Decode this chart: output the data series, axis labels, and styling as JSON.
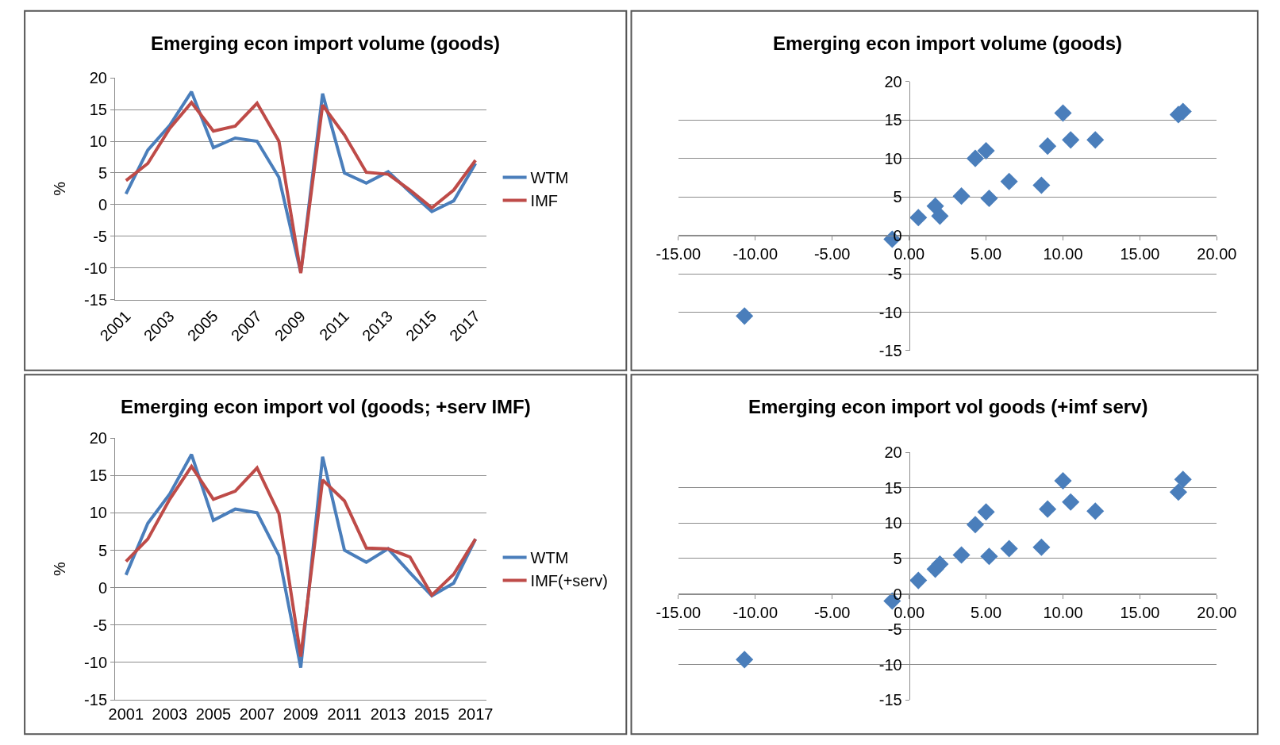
{
  "chart_data": [
    {
      "type": "line",
      "title": "Emerging econ import volume (goods)",
      "ylabel": "%",
      "categories": [
        "2001",
        null,
        "2003",
        null,
        "2005",
        null,
        "2007",
        null,
        "2009",
        null,
        "2011",
        null,
        "2013",
        null,
        "2015",
        null,
        "2017"
      ],
      "series": [
        {
          "name": "WTM",
          "color": "#4a7ebb",
          "values": [
            1.7,
            8.6,
            12.5,
            17.8,
            9.0,
            10.5,
            10.0,
            4.3,
            -10.7,
            17.5,
            5.0,
            3.4,
            5.2,
            2.0,
            -1.1,
            0.6,
            6.5
          ]
        },
        {
          "name": "IMF",
          "color": "#be4b48",
          "values": [
            3.8,
            6.5,
            12.0,
            16.1,
            11.6,
            12.4,
            16.0,
            10.0,
            -10.8,
            15.7,
            11.0,
            5.1,
            4.8,
            2.3,
            -0.5,
            2.3,
            7.0
          ]
        }
      ],
      "ylim": [
        -15,
        20
      ],
      "yticks": [
        -15,
        -10,
        -5,
        0,
        5,
        10,
        15,
        20
      ],
      "grid": "y",
      "legend": "right"
    },
    {
      "type": "scatter",
      "title": "Emerging econ import volume (goods)",
      "x": [
        -10.7,
        -1.1,
        0.6,
        1.7,
        2.0,
        3.4,
        4.3,
        5.0,
        5.2,
        6.5,
        8.6,
        9.0,
        10.0,
        10.5,
        12.1,
        17.5,
        17.8
      ],
      "values": [
        -10.5,
        -0.5,
        2.3,
        3.8,
        2.5,
        5.1,
        10.0,
        11.0,
        4.8,
        7.0,
        6.5,
        11.6,
        15.9,
        12.4,
        12.4,
        15.7,
        16.1
      ],
      "color": "#4a7ebb",
      "marker": "diamond",
      "xlim": [
        -15,
        20
      ],
      "xticks": [
        {
          "value": -15,
          "label": "-15.00"
        },
        {
          "value": -10,
          "label": "-10.00"
        },
        {
          "value": -5,
          "label": "-5.00"
        },
        {
          "value": 0,
          "label": "0.00"
        },
        {
          "value": 5,
          "label": "5.00"
        },
        {
          "value": 10,
          "label": "10.00"
        },
        {
          "value": 15,
          "label": "15.00"
        },
        {
          "value": 20,
          "label": "20.00"
        }
      ],
      "ylim": [
        -15,
        20
      ],
      "yticks": [
        -15,
        -10,
        -5,
        0,
        5,
        10,
        15,
        20
      ],
      "grid": "y"
    },
    {
      "type": "line",
      "title": "Emerging econ import vol (goods; +serv IMF)",
      "ylabel": "%",
      "categories": [
        "2001",
        null,
        "2003",
        null,
        "2005",
        null,
        "2007",
        null,
        "2009",
        null,
        "2011",
        null,
        "2013",
        null,
        "2015",
        null,
        "2017"
      ],
      "series": [
        {
          "name": "WTM",
          "color": "#4a7ebb",
          "values": [
            1.7,
            8.6,
            12.5,
            17.8,
            9.0,
            10.5,
            10.0,
            4.3,
            -10.7,
            17.5,
            5.0,
            3.4,
            5.2,
            2.0,
            -1.1,
            0.6,
            6.5
          ]
        },
        {
          "name": "IMF(+serv)",
          "color": "#be4b48",
          "values": [
            3.5,
            6.5,
            11.8,
            16.2,
            11.8,
            12.9,
            16.0,
            9.9,
            -9.2,
            14.4,
            11.6,
            5.3,
            5.2,
            4.1,
            -1.0,
            1.8,
            6.5
          ]
        }
      ],
      "ylim": [
        -15,
        20
      ],
      "yticks": [
        -15,
        -10,
        -5,
        0,
        5,
        10,
        15,
        20
      ],
      "grid": "y",
      "legend": "right"
    },
    {
      "type": "scatter",
      "title": "Emerging econ import vol goods (+imf serv)",
      "x": [
        -10.7,
        -1.1,
        0.6,
        1.7,
        2.0,
        3.4,
        4.3,
        5.0,
        5.2,
        6.5,
        8.6,
        9.0,
        10.0,
        10.5,
        12.1,
        17.5,
        17.8
      ],
      "values": [
        -9.3,
        -1.0,
        1.9,
        3.5,
        4.2,
        5.5,
        9.8,
        11.6,
        5.3,
        6.4,
        6.6,
        12.0,
        16.0,
        13.0,
        11.7,
        14.4,
        16.2
      ],
      "color": "#4a7ebb",
      "marker": "diamond",
      "xlim": [
        -15,
        20
      ],
      "xticks": [
        {
          "value": -15,
          "label": "-15.00"
        },
        {
          "value": -10,
          "label": "-10.00"
        },
        {
          "value": -5,
          "label": "-5.00"
        },
        {
          "value": 0,
          "label": "0.00"
        },
        {
          "value": 5,
          "label": "5.00"
        },
        {
          "value": 10,
          "label": "10.00"
        },
        {
          "value": 15,
          "label": "15.00"
        },
        {
          "value": 20,
          "label": "20.00"
        }
      ],
      "ylim": [
        -15,
        20
      ],
      "yticks": [
        -15,
        -10,
        -5,
        0,
        5,
        10,
        15,
        20
      ],
      "grid": "y"
    }
  ]
}
